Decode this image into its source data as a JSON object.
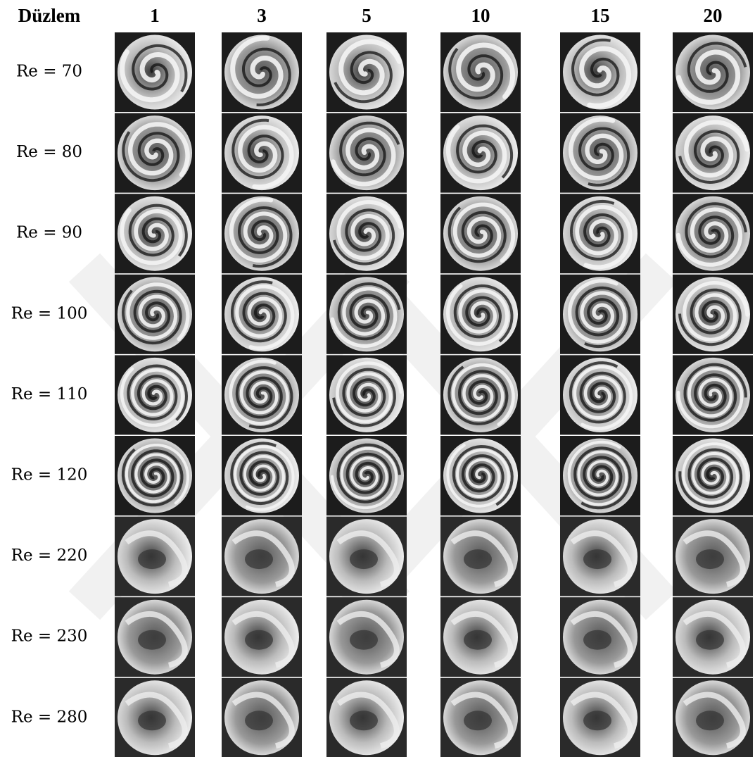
{
  "header": {
    "corner": "Düzlem",
    "columns": [
      "1",
      "3",
      "5",
      "10",
      "15",
      "20"
    ]
  },
  "rows": [
    {
      "label": "Re = 70"
    },
    {
      "label": "Re = 80"
    },
    {
      "label": "Re = 90"
    },
    {
      "label": "Re = 100"
    },
    {
      "label": "Re = 110"
    },
    {
      "label": "Re = 120"
    },
    {
      "label": "Re = 220"
    },
    {
      "label": "Re = 230"
    },
    {
      "label": "Re = 280"
    }
  ]
}
